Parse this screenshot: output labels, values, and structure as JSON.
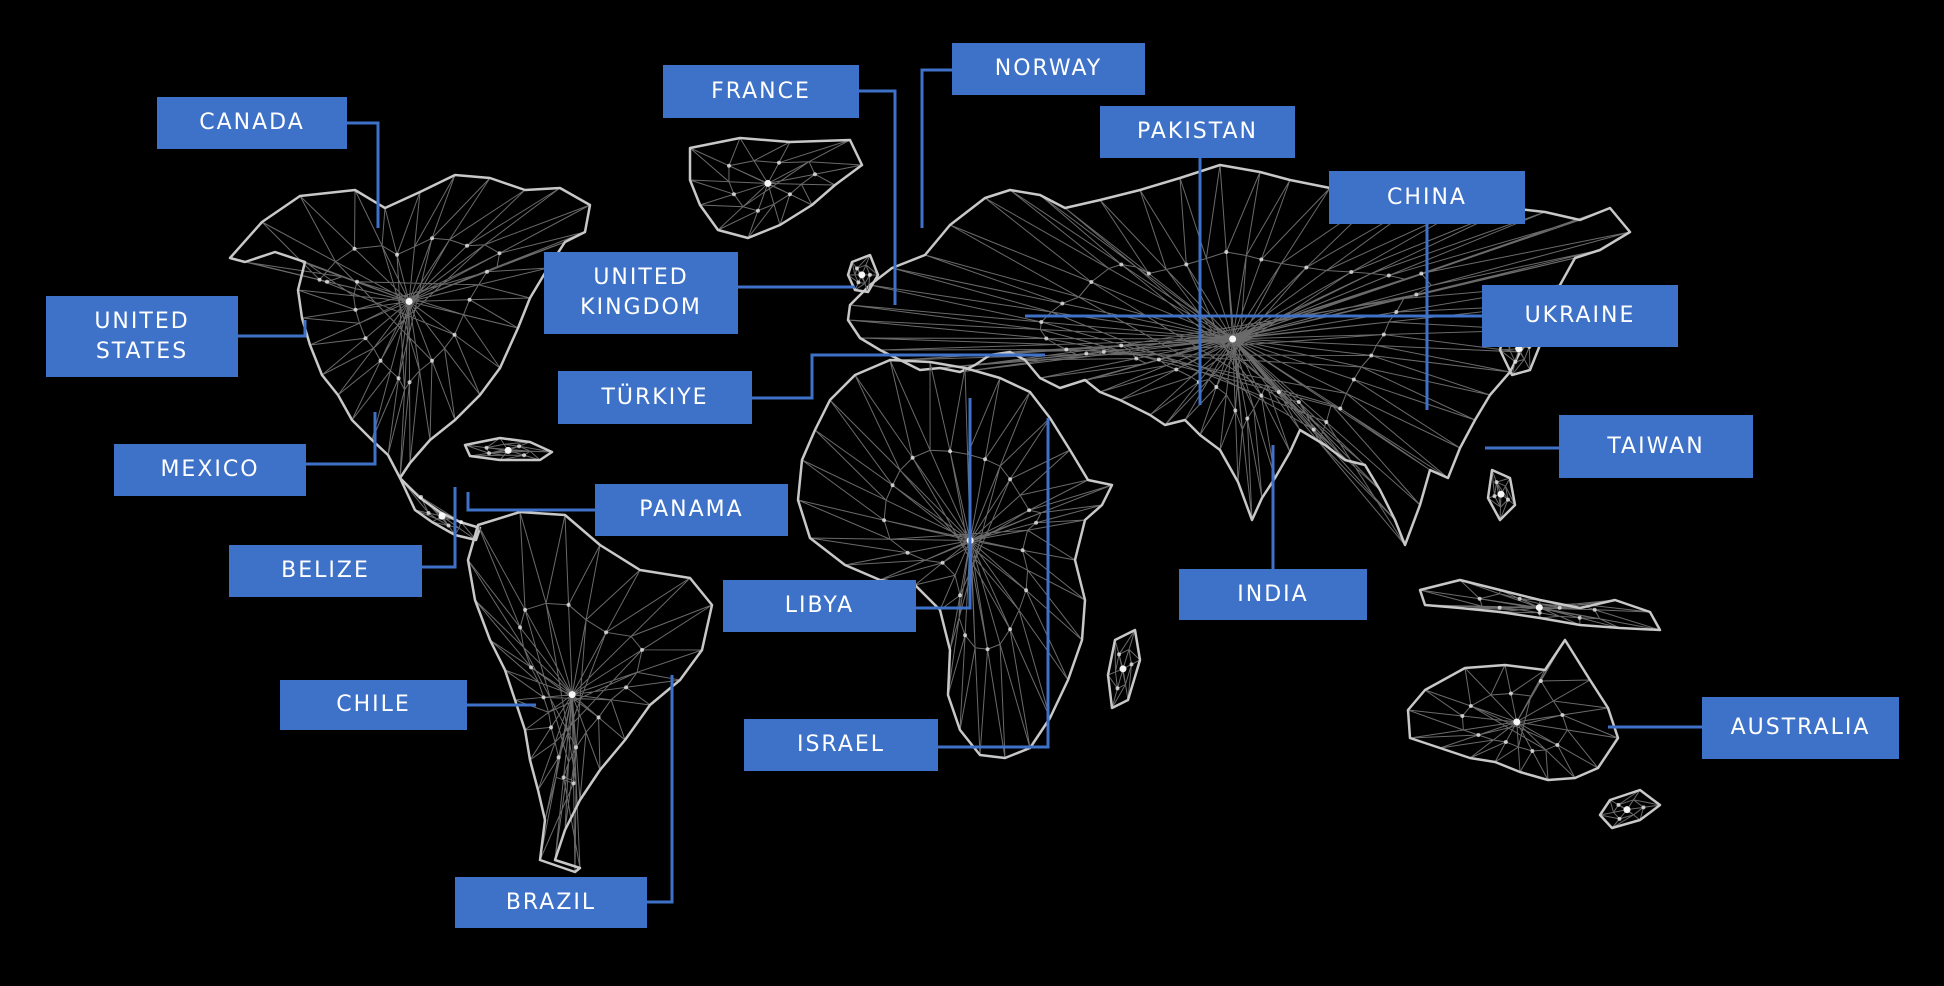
{
  "map": {
    "style": "low-poly wireframe world map",
    "background_color": "#000000",
    "label_color": "#3e72c8",
    "connector_color": "#3e72c8",
    "outline_color": "#c8c8c8",
    "mesh_color": "#6a6a6a",
    "node_color": "#ffffff"
  },
  "labels": {
    "canada": "CANADA",
    "united_states": "UNITED STATES",
    "mexico": "MEXICO",
    "belize": "BELIZE",
    "chile": "CHILE",
    "brazil": "BRAZIL",
    "panama": "PANAMA",
    "france": "FRANCE",
    "united_kingdom": "UNITED KINGDOM",
    "turkiye": "TÜRKIYE",
    "libya": "LIBYA",
    "israel": "ISRAEL",
    "norway": "NORWAY",
    "pakistan": "PAKISTAN",
    "china": "CHINA",
    "ukraine": "UKRAINE",
    "taiwan": "TAIWAN",
    "india": "INDIA",
    "australia": "AUSTRALIA"
  }
}
